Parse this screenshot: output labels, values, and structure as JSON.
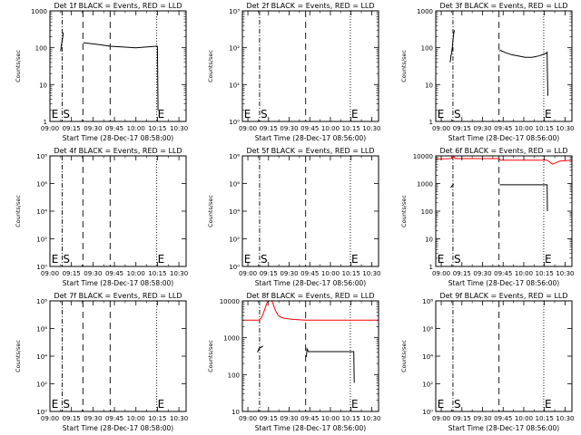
{
  "colors": {
    "background": "#ffffff",
    "axes": "#000000",
    "events": "#000000",
    "lld": "#ff0000"
  },
  "chart_data": [
    {
      "type": "line",
      "title": "Det 1f BLACK = Events, RED = LLD",
      "ylabel": "Counts/sec",
      "xlabel": "Start Time (28-Dec-17 08:58:00)",
      "scale": "log",
      "ylim": [
        1,
        1000
      ],
      "ytick_labels": [
        "1",
        "10",
        "100",
        "1000"
      ],
      "xtick_labels": [
        "09:00",
        "09:15",
        "09:30",
        "09:45",
        "10:00",
        "10:15",
        "10:30"
      ],
      "xtick_values": [
        0,
        15,
        30,
        45,
        60,
        75,
        90
      ],
      "xlim": [
        0,
        95
      ],
      "markers": [
        {
          "label": "E",
          "x": 0.5
        },
        {
          "label": "S",
          "x": 8.5
        },
        {
          "label": "E",
          "x": 74.5
        }
      ],
      "dashdot_lines": [
        8.5
      ],
      "dashed_lines": [
        23,
        42
      ],
      "dotted_lines": [
        74.5
      ],
      "series": [
        {
          "color": "#000000",
          "x": [
            7.5,
            8,
            8.5,
            9,
            9.3
          ],
          "y": [
            80,
            120,
            150,
            200,
            260
          ]
        },
        {
          "color": "#000000",
          "x": [
            23.5,
            24,
            28,
            35,
            42,
            50,
            60,
            68,
            74.5,
            75,
            75.2,
            75.4
          ],
          "y": [
            140,
            135,
            130,
            120,
            110,
            105,
            100,
            105,
            110,
            110,
            20,
            2
          ]
        }
      ]
    },
    {
      "type": "line",
      "title": "Det 2f BLACK = Events, RED = LLD",
      "ylabel": "Counts/sec",
      "xlabel": "Start Time (28-Dec-17 08:56:00)",
      "scale": "log",
      "ylim": [
        1,
        1000
      ],
      "ytick_labels": [
        "10⁰",
        "10¹",
        "10²",
        "10³"
      ],
      "xtick_labels": [
        "09:00",
        "09:15",
        "09:30",
        "09:45",
        "10:00",
        "10:15",
        "10:30"
      ],
      "xtick_values": [
        4,
        19,
        34,
        49,
        64,
        79,
        94
      ],
      "xlim": [
        0,
        99
      ],
      "markers": [
        {
          "label": "E",
          "x": 0.5
        },
        {
          "label": "S",
          "x": 12.5
        },
        {
          "label": "E",
          "x": 78.5
        }
      ],
      "dashdot_lines": [
        12.5
      ],
      "dashed_lines": [
        46
      ],
      "dotted_lines": [
        78.5
      ],
      "series": []
    },
    {
      "type": "line",
      "title": "Det 3f BLACK = Events, RED = LLD",
      "ylabel": "Counts/sec",
      "xlabel": "Start Time (28-Dec-17 08:56:00)",
      "scale": "log",
      "ylim": [
        1,
        1000
      ],
      "ytick_labels": [
        "1",
        "10",
        "100",
        "1000"
      ],
      "xtick_labels": [
        "09:00",
        "09:15",
        "09:30",
        "09:45",
        "10:00",
        "10:15",
        "10:30"
      ],
      "xtick_values": [
        4,
        19,
        34,
        49,
        64,
        79,
        94
      ],
      "xlim": [
        0,
        99
      ],
      "markers": [
        {
          "label": "E",
          "x": 0.5
        },
        {
          "label": "S",
          "x": 12.5
        },
        {
          "label": "E",
          "x": 78.5
        }
      ],
      "dashdot_lines": [
        12.5
      ],
      "dashed_lines": [
        46
      ],
      "dotted_lines": [
        78.5
      ],
      "series": [
        {
          "color": "#000000",
          "x": [
            10.5,
            11,
            11.5,
            12,
            12.5,
            13,
            13.5
          ],
          "y": [
            40,
            60,
            70,
            100,
            160,
            230,
            300
          ]
        },
        {
          "color": "#000000",
          "x": [
            46.5,
            47,
            50,
            55,
            60,
            65,
            70,
            75,
            80,
            81,
            81.2,
            81.5
          ],
          "y": [
            80,
            85,
            75,
            65,
            60,
            55,
            55,
            60,
            70,
            75,
            20,
            5
          ]
        }
      ]
    },
    {
      "type": "line",
      "title": "Det 4f BLACK = Events, RED = LLD",
      "ylabel": "Counts/sec",
      "xlabel": "Start Time (28-Dec-17 08:58:00)",
      "scale": "log",
      "ylim": [
        1,
        100000000
      ],
      "ytick_labels": [
        "10⁰",
        "10²",
        "10⁴",
        "10⁶",
        "10⁸"
      ],
      "xtick_labels": [
        "09:00",
        "09:15",
        "09:30",
        "09:45",
        "10:00",
        "10:15",
        "10:30"
      ],
      "xtick_values": [
        0,
        15,
        30,
        45,
        60,
        75,
        90
      ],
      "xlim": [
        0,
        95
      ],
      "markers": [
        {
          "label": "E",
          "x": 0.5
        },
        {
          "label": "S",
          "x": 8.5
        },
        {
          "label": "E",
          "x": 74.5
        }
      ],
      "dashdot_lines": [
        8.5
      ],
      "dashed_lines": [
        23,
        42
      ],
      "dotted_lines": [
        74.5
      ],
      "series": []
    },
    {
      "type": "line",
      "title": "Det 5f BLACK = Events, RED = LLD",
      "ylabel": "Counts/sec",
      "xlabel": "Start Time (28-Dec-17 08:56:00)",
      "scale": "log",
      "ylim": [
        1,
        100000000
      ],
      "ytick_labels": [
        "10⁰",
        "10²",
        "10⁴",
        "10⁶",
        "10⁸"
      ],
      "xtick_labels": [
        "09:00",
        "09:15",
        "09:30",
        "09:45",
        "10:00",
        "10:15",
        "10:30"
      ],
      "xtick_values": [
        4,
        19,
        34,
        49,
        64,
        79,
        94
      ],
      "xlim": [
        0,
        99
      ],
      "markers": [
        {
          "label": "E",
          "x": 0.5
        },
        {
          "label": "S",
          "x": 12.5
        },
        {
          "label": "E",
          "x": 78.5
        }
      ],
      "dashdot_lines": [
        12.5
      ],
      "dashed_lines": [
        46
      ],
      "dotted_lines": [
        78.5
      ],
      "series": []
    },
    {
      "type": "line",
      "title": "Det 6f BLACK = Events, RED = LLD",
      "ylabel": "Counts/sec",
      "xlabel": "Start Time (28-Dec-17 08:56:00)",
      "scale": "log",
      "ylim": [
        1,
        10000
      ],
      "ytick_labels": [
        "1",
        "10",
        "100",
        "1000",
        "10000"
      ],
      "xtick_labels": [
        "09:00",
        "09:15",
        "09:30",
        "09:45",
        "10:00",
        "10:15",
        "10:30"
      ],
      "xtick_values": [
        4,
        19,
        34,
        49,
        64,
        79,
        94
      ],
      "xlim": [
        0,
        99
      ],
      "markers": [
        {
          "label": "E",
          "x": 0.5
        },
        {
          "label": "S",
          "x": 12.5
        },
        {
          "label": "E",
          "x": 78.5
        }
      ],
      "dashdot_lines": [
        12.5
      ],
      "dashed_lines": [
        46
      ],
      "dotted_lines": [
        78.5
      ],
      "series": [
        {
          "color": "#ff0000",
          "x": [
            0,
            5,
            10,
            12,
            13,
            14,
            20,
            30,
            40,
            46,
            47,
            55,
            65,
            75,
            81,
            85,
            90,
            99
          ],
          "y": [
            7800,
            7800,
            7900,
            8500,
            9900,
            8000,
            8000,
            8000,
            8000,
            8000,
            7000,
            7000,
            7000,
            7000,
            7000,
            5000,
            6500,
            7000
          ]
        },
        {
          "color": "#000000",
          "x": [
            11,
            11.5,
            12,
            12.5,
            13
          ],
          "y": [
            700,
            800,
            850,
            900,
            950
          ]
        },
        {
          "color": "#000000",
          "x": [
            46.5,
            50,
            60,
            70,
            80,
            81,
            81.2
          ],
          "y": [
            900,
            900,
            900,
            900,
            900,
            900,
            100
          ]
        }
      ]
    },
    {
      "type": "line",
      "title": "Det 7f BLACK = Events, RED = LLD",
      "ylabel": "Counts/sec",
      "xlabel": "Start Time (28-Dec-17 08:58:00)",
      "scale": "log",
      "ylim": [
        1,
        100000000
      ],
      "ytick_labels": [
        "10⁰",
        "10²",
        "10⁴",
        "10⁶",
        "10⁸"
      ],
      "xtick_labels": [
        "09:00",
        "09:15",
        "09:30",
        "09:45",
        "10:00",
        "10:15",
        "10:30"
      ],
      "xtick_values": [
        0,
        15,
        30,
        45,
        60,
        75,
        90
      ],
      "xlim": [
        0,
        95
      ],
      "markers": [
        {
          "label": "E",
          "x": 0.5
        },
        {
          "label": "S",
          "x": 8.5
        },
        {
          "label": "E",
          "x": 74.5
        }
      ],
      "dashdot_lines": [
        8.5
      ],
      "dashed_lines": [
        23,
        42
      ],
      "dotted_lines": [
        74.5
      ],
      "series": []
    },
    {
      "type": "line",
      "title": "Det 8f BLACK = Events, RED = LLD",
      "ylabel": "Counts/sec",
      "xlabel": "Start Time (28-Dec-17 08:56:00)",
      "scale": "log",
      "ylim": [
        10,
        10000
      ],
      "ytick_labels": [
        "10",
        "100",
        "1000",
        "10000"
      ],
      "xtick_labels": [
        "09:00",
        "09:15",
        "09:30",
        "09:45",
        "10:00",
        "10:15",
        "10:30"
      ],
      "xtick_values": [
        4,
        19,
        34,
        49,
        64,
        79,
        94
      ],
      "xlim": [
        0,
        99
      ],
      "markers": [
        {
          "label": "E",
          "x": 78.5
        }
      ],
      "dashdot_lines": [
        12.5
      ],
      "dashed_lines": [
        46
      ],
      "dotted_lines": [
        78.5
      ],
      "series": [
        {
          "color": "#ff0000",
          "x": [
            0,
            8,
            12,
            14,
            16,
            18,
            20,
            22,
            24,
            26,
            28,
            30,
            35,
            40,
            46,
            50,
            60,
            70,
            80,
            90,
            99
          ],
          "y": [
            3000,
            3000,
            3000,
            3500,
            5500,
            9000,
            12000,
            9000,
            5500,
            4000,
            3600,
            3400,
            3200,
            3100,
            3000,
            3000,
            3000,
            3000,
            3000,
            3000,
            3000
          ]
        },
        {
          "color": "#000000",
          "x": [
            11,
            11.5,
            12,
            12.5,
            13,
            14,
            15
          ],
          "y": [
            400,
            450,
            500,
            520,
            540,
            560,
            600
          ]
        },
        {
          "color": "#000000",
          "x": [
            46.5,
            47,
            48,
            55,
            65,
            75,
            81,
            81.3
          ],
          "y": [
            300,
            500,
            420,
            420,
            420,
            420,
            420,
            60
          ]
        }
      ]
    },
    {
      "type": "line",
      "title": "Det 9f BLACK = Events, RED = LLD",
      "ylabel": "Counts/sec",
      "xlabel": "Start Time (28-Dec-17 08:56:00)",
      "scale": "log",
      "ylim": [
        1,
        100000000
      ],
      "ytick_labels": [
        "10⁰",
        "10²",
        "10⁴",
        "10⁶",
        "10⁸"
      ],
      "xtick_labels": [
        "09:00",
        "09:15",
        "09:30",
        "09:45",
        "10:00",
        "10:15",
        "10:30"
      ],
      "xtick_values": [
        4,
        19,
        34,
        49,
        64,
        79,
        94
      ],
      "xlim": [
        0,
        99
      ],
      "markers": [
        {
          "label": "E",
          "x": 0.5
        },
        {
          "label": "S",
          "x": 12.5
        },
        {
          "label": "E",
          "x": 78.5
        }
      ],
      "dashdot_lines": [
        12.5
      ],
      "dashed_lines": [
        46
      ],
      "dotted_lines": [
        78.5
      ],
      "series": []
    }
  ]
}
